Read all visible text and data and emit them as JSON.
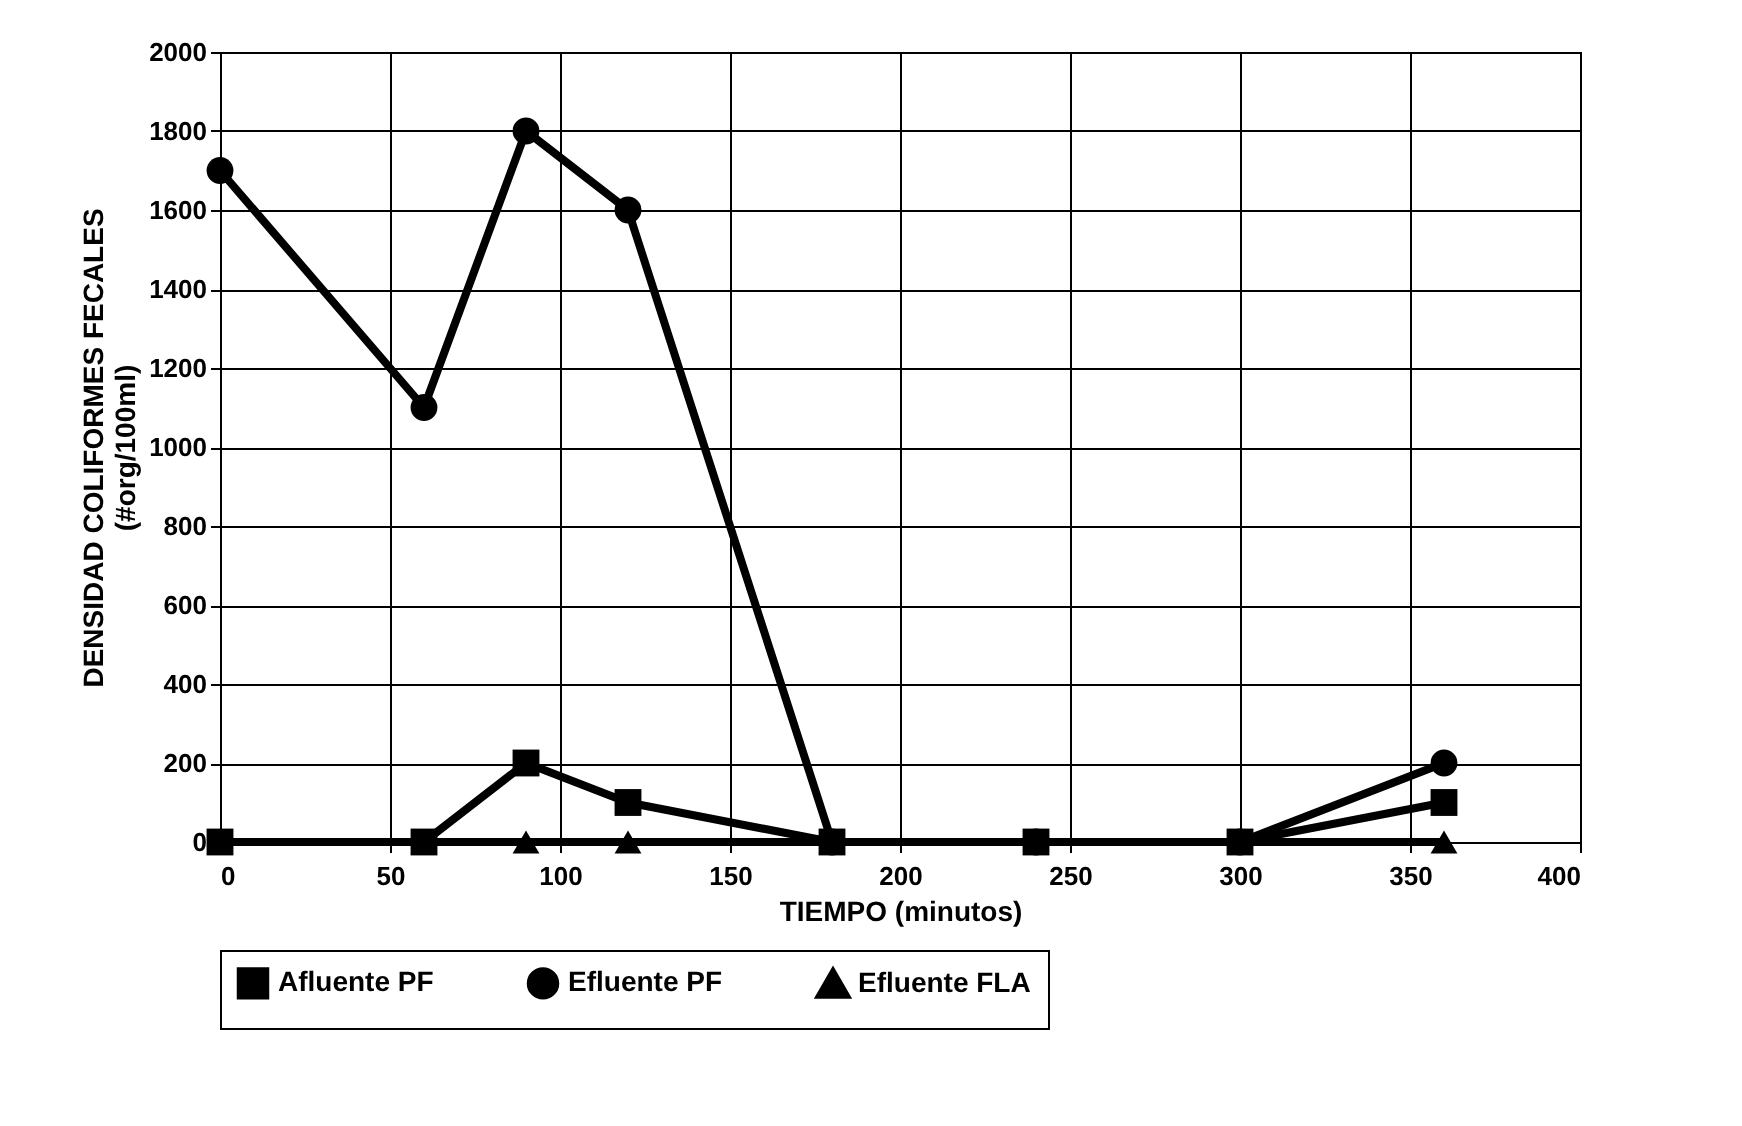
{
  "chart_data": {
    "type": "line",
    "xlabel": "TIEMPO (minutos)",
    "ylabel": "DENSIDAD COLIFORMES FECALES (#org/100ml)",
    "xlim": [
      0,
      400
    ],
    "xticks": [
      0,
      50,
      100,
      150,
      200,
      250,
      300,
      350,
      400
    ],
    "ylim": [
      0,
      2000
    ],
    "yticks": [
      0,
      200,
      400,
      600,
      800,
      1000,
      1200,
      1400,
      1600,
      1800,
      2000
    ],
    "grid": true,
    "legend": "bottom",
    "line_style": "solid",
    "series": [
      {
        "name": "Afluente PF",
        "color": "#000000",
        "marker": "square",
        "x": [
          0,
          60,
          90,
          120,
          180,
          240,
          300,
          360
        ],
        "values": [
          0,
          0,
          200,
          100,
          0,
          0,
          0,
          100
        ]
      },
      {
        "name": "Efluente PF",
        "color": "#000000",
        "marker": "circle",
        "x": [
          0,
          60,
          90,
          120,
          180,
          240,
          300,
          360
        ],
        "values": [
          1700,
          1100,
          1800,
          1600,
          0,
          0,
          0,
          200
        ]
      },
      {
        "name": "Efluente FLA",
        "color": "#000000",
        "marker": "triangle",
        "x": [
          0,
          60,
          90,
          120,
          180,
          360
        ],
        "values": [
          0,
          0,
          0,
          0,
          0,
          0
        ]
      }
    ]
  }
}
